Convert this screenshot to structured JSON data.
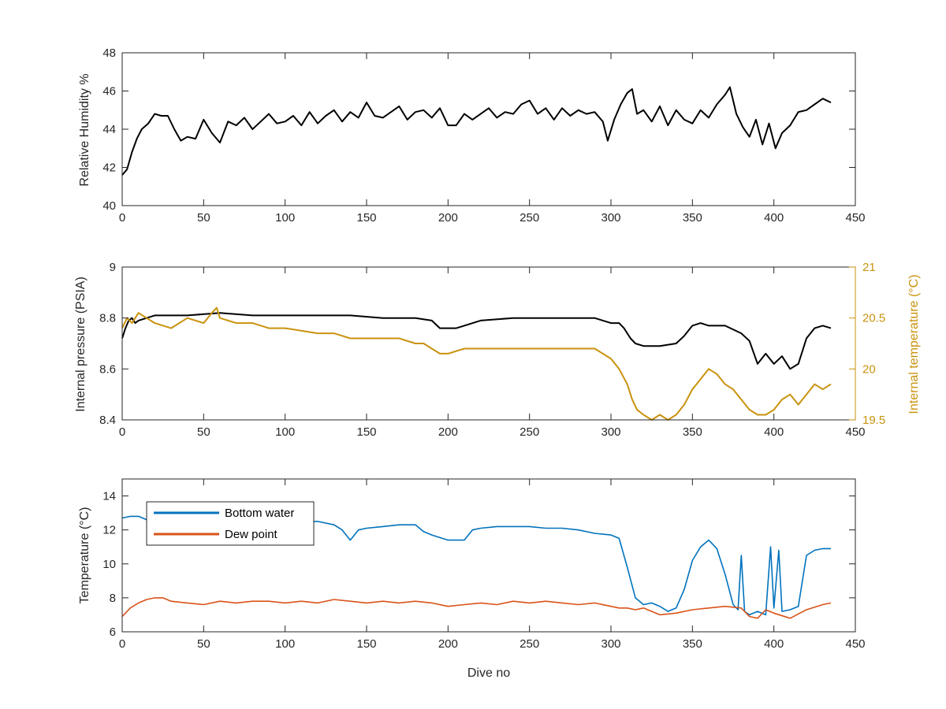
{
  "chart_data": [
    {
      "type": "line",
      "title": "",
      "xlabel": "",
      "ylabel": "Relative Humidity %",
      "xlim": [
        0,
        450
      ],
      "ylim": [
        40,
        48
      ],
      "xticks": [
        0,
        50,
        100,
        150,
        200,
        250,
        300,
        350,
        400,
        450
      ],
      "yticks": [
        40,
        42,
        44,
        46,
        48
      ],
      "grid": false,
      "series": [
        {
          "color": "#000000",
          "x": [
            0,
            3,
            6,
            9,
            12,
            16,
            20,
            24,
            28,
            32,
            36,
            40,
            45,
            50,
            55,
            60,
            65,
            70,
            75,
            80,
            85,
            90,
            95,
            100,
            105,
            110,
            115,
            120,
            125,
            130,
            135,
            140,
            145,
            150,
            155,
            160,
            165,
            170,
            175,
            180,
            185,
            190,
            195,
            200,
            205,
            210,
            215,
            220,
            225,
            230,
            235,
            240,
            245,
            250,
            255,
            260,
            265,
            270,
            275,
            280,
            285,
            290,
            295,
            298,
            302,
            306,
            310,
            313,
            316,
            320,
            325,
            330,
            335,
            340,
            345,
            350,
            355,
            360,
            365,
            370,
            373,
            377,
            381,
            385,
            389,
            393,
            397,
            401,
            405,
            410,
            415,
            420,
            425,
            430,
            435
          ],
          "y": [
            41.6,
            41.9,
            42.8,
            43.5,
            44.0,
            44.3,
            44.8,
            44.7,
            44.7,
            44.0,
            43.4,
            43.6,
            43.5,
            44.5,
            43.8,
            43.3,
            44.4,
            44.2,
            44.6,
            44.0,
            44.4,
            44.8,
            44.3,
            44.4,
            44.7,
            44.2,
            44.9,
            44.3,
            44.7,
            45.0,
            44.4,
            44.9,
            44.6,
            45.4,
            44.7,
            44.6,
            44.9,
            45.2,
            44.5,
            44.9,
            45.0,
            44.6,
            45.1,
            44.2,
            44.2,
            44.8,
            44.5,
            44.8,
            45.1,
            44.6,
            44.9,
            44.8,
            45.3,
            45.5,
            44.8,
            45.1,
            44.5,
            45.1,
            44.7,
            45.0,
            44.8,
            44.9,
            44.4,
            43.4,
            44.5,
            45.3,
            45.9,
            46.1,
            44.8,
            45.0,
            44.4,
            45.2,
            44.2,
            45.0,
            44.5,
            44.3,
            45.0,
            44.6,
            45.3,
            45.8,
            46.2,
            44.8,
            44.1,
            43.6,
            44.5,
            43.2,
            44.3,
            43.0,
            43.8,
            44.2,
            44.9,
            45.0,
            45.3,
            45.6,
            45.4
          ]
        }
      ]
    },
    {
      "type": "line",
      "title": "",
      "xlabel": "",
      "ylabel": "Internal pressure (PSIA)",
      "ylabel_right": "Internal temperature (°C)",
      "xlim": [
        0,
        450
      ],
      "ylim": [
        8.4,
        9.0
      ],
      "ylim_right": [
        19.5,
        21.0
      ],
      "xticks": [
        0,
        50,
        100,
        150,
        200,
        250,
        300,
        350,
        400,
        450
      ],
      "yticks": [
        8.4,
        8.6,
        8.8,
        9.0
      ],
      "yticklabels": [
        "8.4",
        "8.6",
        "8.8",
        "9"
      ],
      "yticks_right": [
        19.5,
        20.0,
        20.5,
        21.0
      ],
      "yticklabels_right": [
        "19.5",
        "20",
        "20.5",
        "21"
      ],
      "grid": false,
      "series": [
        {
          "axis": "left",
          "color": "#000000",
          "x": [
            0,
            2,
            4,
            6,
            8,
            10,
            20,
            40,
            60,
            80,
            100,
            120,
            140,
            160,
            180,
            190,
            195,
            205,
            210,
            220,
            240,
            260,
            280,
            290,
            295,
            300,
            305,
            308,
            312,
            315,
            320,
            330,
            340,
            345,
            350,
            355,
            360,
            370,
            380,
            385,
            390,
            395,
            400,
            405,
            410,
            415,
            420,
            425,
            430,
            435
          ],
          "y": [
            8.72,
            8.76,
            8.79,
            8.8,
            8.78,
            8.79,
            8.81,
            8.81,
            8.82,
            8.81,
            8.81,
            8.81,
            8.81,
            8.8,
            8.8,
            8.79,
            8.76,
            8.76,
            8.77,
            8.79,
            8.8,
            8.8,
            8.8,
            8.8,
            8.79,
            8.78,
            8.78,
            8.76,
            8.72,
            8.7,
            8.69,
            8.69,
            8.7,
            8.73,
            8.77,
            8.78,
            8.77,
            8.77,
            8.74,
            8.71,
            8.62,
            8.66,
            8.62,
            8.65,
            8.6,
            8.62,
            8.72,
            8.76,
            8.77,
            8.76
          ]
        },
        {
          "axis": "right",
          "color": "#c9920e",
          "x": [
            0,
            3,
            6,
            10,
            15,
            20,
            30,
            40,
            50,
            55,
            58,
            60,
            70,
            80,
            90,
            100,
            120,
            130,
            140,
            150,
            160,
            170,
            180,
            185,
            190,
            195,
            200,
            210,
            220,
            230,
            240,
            250,
            260,
            270,
            280,
            290,
            295,
            300,
            305,
            310,
            313,
            316,
            320,
            325,
            330,
            335,
            340,
            345,
            350,
            355,
            360,
            365,
            370,
            375,
            380,
            385,
            390,
            395,
            400,
            405,
            410,
            415,
            420,
            425,
            430,
            435
          ],
          "y": [
            20.4,
            20.5,
            20.45,
            20.55,
            20.5,
            20.45,
            20.4,
            20.5,
            20.45,
            20.55,
            20.6,
            20.5,
            20.45,
            20.45,
            20.4,
            20.4,
            20.35,
            20.35,
            20.3,
            20.3,
            20.3,
            20.3,
            20.25,
            20.25,
            20.2,
            20.15,
            20.15,
            20.2,
            20.2,
            20.2,
            20.2,
            20.2,
            20.2,
            20.2,
            20.2,
            20.2,
            20.15,
            20.1,
            20.0,
            19.85,
            19.7,
            19.6,
            19.55,
            19.5,
            19.55,
            19.5,
            19.55,
            19.65,
            19.8,
            19.9,
            20.0,
            19.95,
            19.85,
            19.8,
            19.7,
            19.6,
            19.55,
            19.55,
            19.6,
            19.7,
            19.75,
            19.65,
            19.75,
            19.85,
            19.8,
            19.85
          ]
        }
      ]
    },
    {
      "type": "line",
      "title": "",
      "xlabel": "Dive no",
      "ylabel": "Temperature (°C)",
      "xlim": [
        0,
        450
      ],
      "ylim": [
        6,
        15
      ],
      "xticks": [
        0,
        50,
        100,
        150,
        200,
        250,
        300,
        350,
        400,
        450
      ],
      "yticks": [
        6,
        8,
        10,
        12,
        14
      ],
      "grid": false,
      "legend": "top-left",
      "series": [
        {
          "name": "Bottom water",
          "color": "#0072bd",
          "x": [
            0,
            5,
            10,
            15,
            20,
            30,
            40,
            50,
            60,
            70,
            80,
            90,
            100,
            110,
            120,
            130,
            135,
            140,
            145,
            150,
            160,
            170,
            180,
            185,
            190,
            200,
            210,
            215,
            220,
            230,
            240,
            250,
            260,
            270,
            280,
            290,
            300,
            305,
            310,
            315,
            320,
            325,
            330,
            335,
            340,
            345,
            350,
            355,
            360,
            365,
            370,
            375,
            378,
            380,
            382,
            385,
            390,
            395,
            398,
            400,
            403,
            405,
            410,
            415,
            420,
            425,
            430,
            435
          ],
          "y": [
            12.7,
            12.8,
            12.8,
            12.6,
            12.7,
            12.8,
            12.9,
            12.8,
            12.7,
            12.8,
            12.6,
            12.7,
            12.6,
            12.5,
            12.5,
            12.3,
            12.0,
            11.4,
            12.0,
            12.1,
            12.2,
            12.3,
            12.3,
            11.9,
            11.7,
            11.4,
            11.4,
            12.0,
            12.1,
            12.2,
            12.2,
            12.2,
            12.1,
            12.1,
            12.0,
            11.8,
            11.7,
            11.5,
            9.8,
            8.0,
            7.6,
            7.7,
            7.5,
            7.2,
            7.4,
            8.5,
            10.2,
            11.0,
            11.4,
            10.9,
            9.4,
            7.6,
            7.3,
            10.5,
            7.2,
            7.0,
            7.2,
            7.0,
            11.0,
            7.4,
            10.8,
            7.2,
            7.3,
            7.5,
            10.5,
            10.8,
            10.9,
            10.9
          ]
        },
        {
          "name": "Dew point",
          "color": "#d95319",
          "x": [
            0,
            5,
            10,
            15,
            20,
            25,
            30,
            40,
            50,
            60,
            70,
            80,
            90,
            100,
            110,
            120,
            130,
            140,
            150,
            160,
            170,
            180,
            190,
            200,
            210,
            220,
            230,
            240,
            250,
            260,
            270,
            280,
            290,
            300,
            305,
            310,
            315,
            320,
            325,
            330,
            340,
            350,
            360,
            370,
            380,
            385,
            390,
            395,
            400,
            410,
            420,
            430,
            435
          ],
          "y": [
            6.9,
            7.4,
            7.7,
            7.9,
            8.0,
            8.0,
            7.8,
            7.7,
            7.6,
            7.8,
            7.7,
            7.8,
            7.8,
            7.7,
            7.8,
            7.7,
            7.9,
            7.8,
            7.7,
            7.8,
            7.7,
            7.8,
            7.7,
            7.5,
            7.6,
            7.7,
            7.6,
            7.8,
            7.7,
            7.8,
            7.7,
            7.6,
            7.7,
            7.5,
            7.4,
            7.4,
            7.3,
            7.4,
            7.2,
            7.0,
            7.1,
            7.3,
            7.4,
            7.5,
            7.4,
            6.9,
            6.8,
            7.3,
            7.1,
            6.8,
            7.3,
            7.6,
            7.7
          ]
        }
      ]
    }
  ]
}
